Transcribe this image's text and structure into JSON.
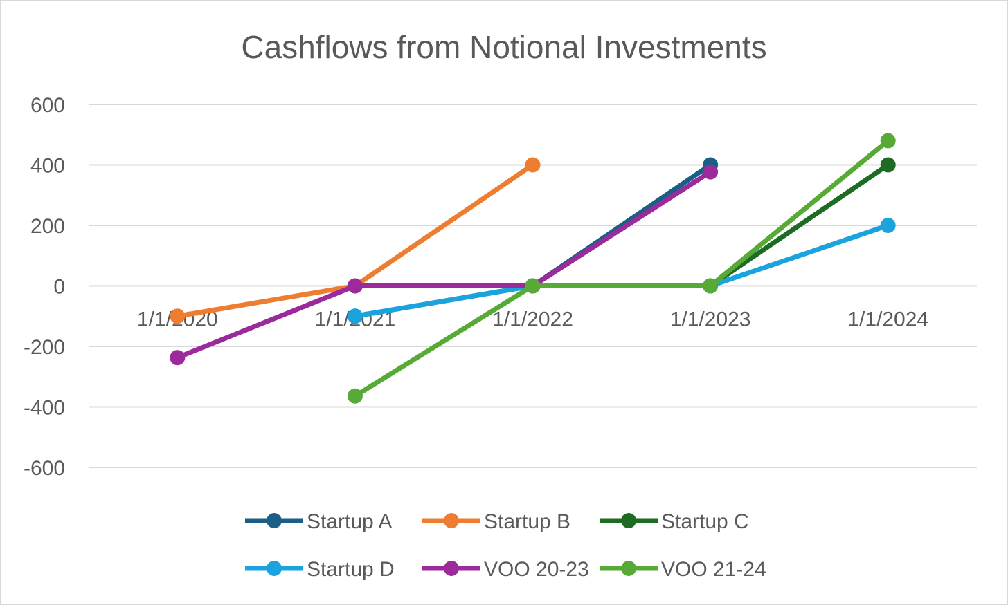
{
  "chart_data": {
    "type": "line",
    "title": "Cashflows from Notional Investments",
    "xlabel": "",
    "ylabel": "",
    "categories": [
      "1/1/2020",
      "1/1/2021",
      "1/1/2022",
      "1/1/2023",
      "1/1/2024"
    ],
    "yticks": [
      "600",
      "400",
      "200",
      "0",
      "-200",
      "-400",
      "-600"
    ],
    "ylim": [
      -600,
      600
    ],
    "grid": true,
    "legend": "bottom",
    "series": [
      {
        "name": "Startup A",
        "color": "#1b5f86",
        "values": [
          null,
          -100,
          0,
          400,
          null
        ]
      },
      {
        "name": "Startup B",
        "color": "#ed7d31",
        "values": [
          -100,
          0,
          400,
          null,
          null
        ]
      },
      {
        "name": "Startup C",
        "color": "#1e6b24",
        "values": [
          null,
          null,
          0,
          0,
          400
        ]
      },
      {
        "name": "Startup D",
        "color": "#1aa3dc",
        "values": [
          null,
          -100,
          0,
          0,
          200
        ]
      },
      {
        "name": "VOO 20-23",
        "color": "#9b2a9b",
        "values": [
          -237,
          0,
          0,
          377,
          null
        ]
      },
      {
        "name": "VOO 21-24",
        "color": "#57aa35",
        "values": [
          null,
          -364,
          0,
          0,
          480
        ]
      }
    ]
  }
}
